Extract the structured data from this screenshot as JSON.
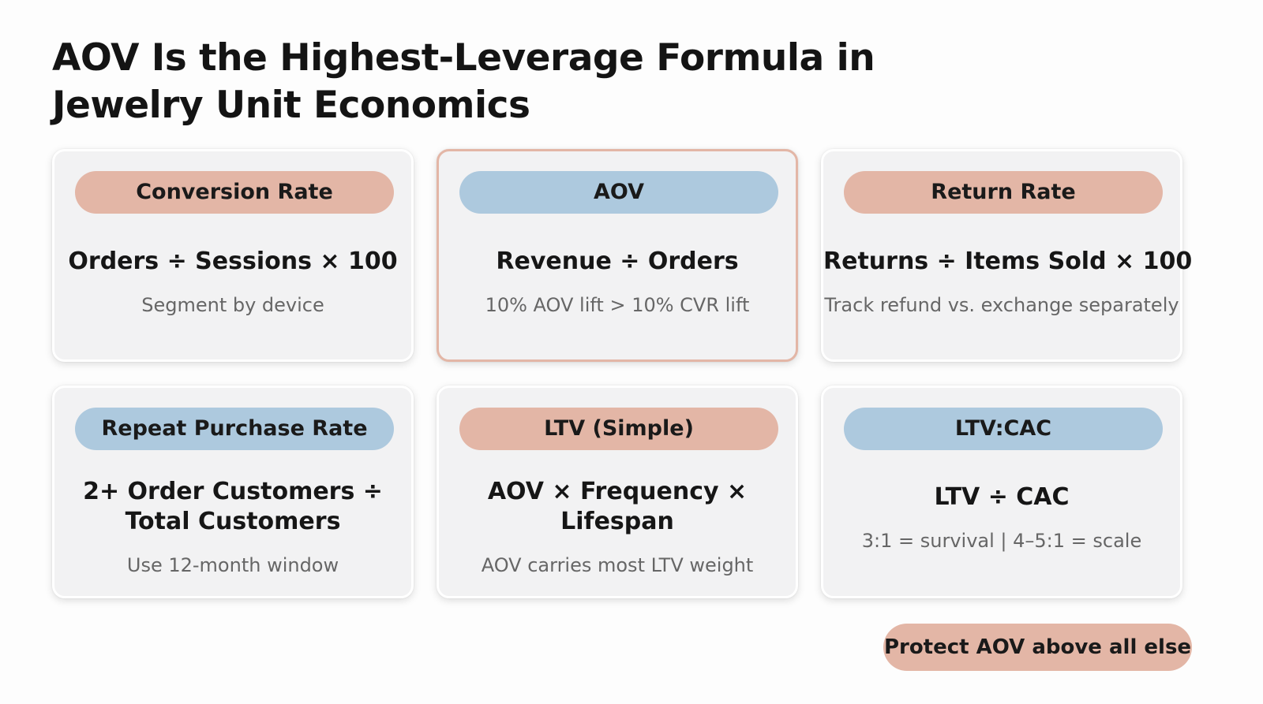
{
  "slide": {
    "title_line1": "AOV Is the Highest-Leverage Formula in",
    "title_line2": "Jewelry Unit Economics",
    "takeaway": "Protect AOV above all else"
  },
  "colors": {
    "peach": "#e3b6a6",
    "blue": "#adc9de",
    "card_background": "#f2f2f3"
  },
  "cards": [
    {
      "label": "Conversion Rate",
      "label_color": "peach",
      "formula_line1": "Orders ÷ Sessions × 100",
      "formula_line2": "",
      "note": "Segment by device",
      "highlighted": false
    },
    {
      "label": "AOV",
      "label_color": "blue",
      "formula_line1": "Revenue ÷ Orders",
      "formula_line2": "",
      "note": "10% AOV lift > 10% CVR lift",
      "highlighted": true
    },
    {
      "label": "Return Rate",
      "label_color": "peach",
      "formula_line1": "Returns ÷ Items Sold × 100",
      "formula_line2": "",
      "note": "Track refund vs. exchange separately",
      "highlighted": false
    },
    {
      "label": "Repeat Purchase Rate",
      "label_color": "blue",
      "formula_line1": "2+ Order Customers ÷",
      "formula_line2": "Total Customers",
      "note": "Use 12-month window",
      "highlighted": false
    },
    {
      "label": "LTV (Simple)",
      "label_color": "peach",
      "formula_line1": "AOV × Frequency ×",
      "formula_line2": "Lifespan",
      "note": "AOV carries most LTV weight",
      "highlighted": false
    },
    {
      "label": "LTV:CAC",
      "label_color": "blue",
      "formula_line1": "LTV ÷ CAC",
      "formula_line2": "",
      "note": "3:1 = survival | 4–5:1 = scale",
      "highlighted": false
    }
  ]
}
